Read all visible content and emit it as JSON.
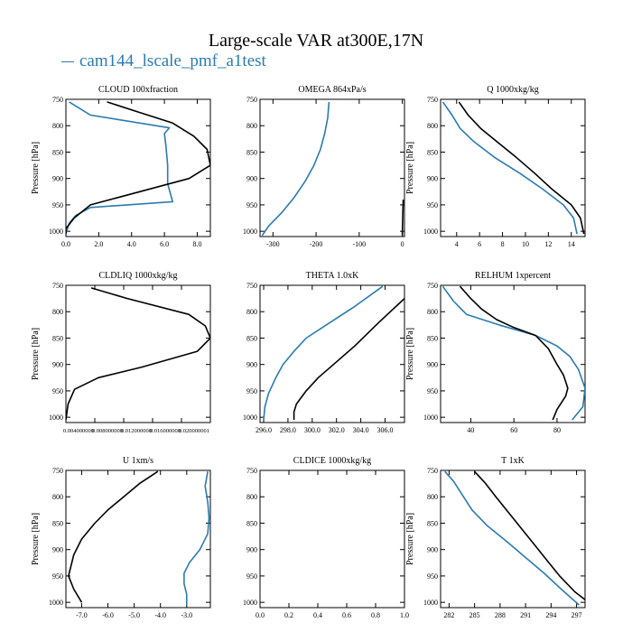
{
  "page": {
    "title": "Large-scale VAR at300E,17N",
    "legend_label": "cam144_lscale_pmf_a1test",
    "colors": {
      "case": "#2a7bb0",
      "control": "#000000"
    }
  },
  "chart_data": [
    {
      "type": "line",
      "title": "CLOUD  100xfraction",
      "ylabel": "Pressure [hPa]",
      "xlim": [
        0,
        8.8
      ],
      "ylim": [
        750,
        1010
      ],
      "xticks": [
        0.0,
        2.0,
        4.0,
        6.0,
        8.0
      ],
      "xtick_labels": [
        "0.0",
        "2.0",
        "4.0",
        "6.0",
        "8.0"
      ],
      "yticks": [
        750,
        800,
        850,
        900,
        950,
        1000
      ],
      "series": [
        {
          "color": "#2a7bb0",
          "points": [
            [
              0.2,
              755
            ],
            [
              1.5,
              780
            ],
            [
              6.3,
              804
            ],
            [
              6.0,
              815
            ],
            [
              6.1,
              840
            ],
            [
              6.2,
              875
            ],
            [
              6.2,
              910
            ],
            [
              6.5,
              944
            ],
            [
              1.5,
              955
            ],
            [
              0.6,
              970
            ],
            [
              0.2,
              985
            ],
            [
              0.0,
              1005
            ]
          ]
        },
        {
          "color": "#000000",
          "points": [
            [
              2.5,
              755
            ],
            [
              4.5,
              775
            ],
            [
              6.5,
              795
            ],
            [
              7.8,
              820
            ],
            [
              8.6,
              845
            ],
            [
              8.8,
              875
            ],
            [
              7.5,
              900
            ],
            [
              4.5,
              925
            ],
            [
              1.5,
              950
            ],
            [
              0.5,
              975
            ],
            [
              0.0,
              995
            ],
            [
              0.0,
              1005
            ]
          ]
        }
      ]
    },
    {
      "type": "line",
      "title": "OMEGA  864xPa/s",
      "ylabel": "",
      "xlim": [
        -330,
        5
      ],
      "ylim": [
        750,
        1010
      ],
      "xticks": [
        -300,
        -200,
        -100,
        0
      ],
      "xtick_labels": [
        "-300",
        "-200",
        "-100",
        "0"
      ],
      "yticks": [
        750,
        800,
        850,
        900,
        950,
        1000
      ],
      "series": [
        {
          "color": "#2a7bb0",
          "points": [
            [
              -170,
              755
            ],
            [
              -173,
              785
            ],
            [
              -180,
              815
            ],
            [
              -190,
              845
            ],
            [
              -205,
              875
            ],
            [
              -225,
              905
            ],
            [
              -250,
              935
            ],
            [
              -280,
              965
            ],
            [
              -310,
              990
            ],
            [
              -325,
              1008
            ]
          ]
        },
        {
          "color": "#000000",
          "points": [
            [
              2,
              940
            ],
            [
              1,
              970
            ],
            [
              0,
              1008
            ]
          ]
        }
      ]
    },
    {
      "type": "line",
      "title": "Q  1000xkg/kg",
      "ylabel": "Pressure [hPa]",
      "xlim": [
        2.6,
        15.2
      ],
      "ylim": [
        750,
        1010
      ],
      "xticks": [
        4,
        6,
        8,
        10,
        12,
        14
      ],
      "xtick_labels": [
        "4",
        "6",
        "8",
        "10",
        "12",
        "14"
      ],
      "yticks": [
        750,
        800,
        850,
        900,
        950,
        1000
      ],
      "series": [
        {
          "color": "#2a7bb0",
          "points": [
            [
              2.8,
              755
            ],
            [
              3.6,
              780
            ],
            [
              4.3,
              805
            ],
            [
              5.5,
              830
            ],
            [
              7.3,
              860
            ],
            [
              9.5,
              890
            ],
            [
              11.5,
              920
            ],
            [
              13.3,
              950
            ],
            [
              14.2,
              975
            ],
            [
              14.5,
              1005
            ]
          ]
        },
        {
          "color": "#000000",
          "points": [
            [
              4.2,
              755
            ],
            [
              5.0,
              780
            ],
            [
              6.1,
              805
            ],
            [
              7.5,
              830
            ],
            [
              9.2,
              860
            ],
            [
              10.8,
              890
            ],
            [
              12.3,
              920
            ],
            [
              14.0,
              950
            ],
            [
              14.8,
              975
            ],
            [
              15.1,
              1005
            ]
          ]
        }
      ]
    },
    {
      "type": "line",
      "title": "CLDLIQ  1000xkg/kg",
      "ylabel": "Pressure [hPa]",
      "xlim": [
        0,
        0.02
      ],
      "ylim": [
        750,
        1010
      ],
      "xticks": [
        0.004,
        0.008,
        0.012,
        0.016,
        0.02
      ],
      "xtick_labels": [
        "0.004000000",
        "0.008000000",
        "0.012000000",
        "0.016000000",
        "0.020000001"
      ],
      "yticks": [
        750,
        800,
        850,
        900,
        950,
        1000
      ],
      "series": [
        {
          "color": "#000000",
          "points": [
            [
              0.0035,
              755
            ],
            [
              0.0085,
              775
            ],
            [
              0.017,
              805
            ],
            [
              0.0193,
              827
            ],
            [
              0.02,
              850
            ],
            [
              0.0182,
              875
            ],
            [
              0.0105,
              905
            ],
            [
              0.0045,
              925
            ],
            [
              0.0012,
              947
            ],
            [
              0.0003,
              975
            ],
            [
              0.0,
              1005
            ]
          ]
        }
      ]
    },
    {
      "type": "line",
      "title": "THETA  1.0xK",
      "ylabel": "",
      "xlim": [
        295.7,
        307.6
      ],
      "ylim": [
        750,
        1010
      ],
      "xticks": [
        296.0,
        298.0,
        300.0,
        302.0,
        304.0,
        306.0
      ],
      "xtick_labels": [
        "296.0",
        "298.0",
        "300.0",
        "302.0",
        "304.0",
        "306.0"
      ],
      "yticks": [
        750,
        800,
        850,
        900,
        950,
        1000
      ],
      "series": [
        {
          "color": "#2a7bb0",
          "points": [
            [
              305.8,
              752
            ],
            [
              303.5,
              790
            ],
            [
              301.5,
              820
            ],
            [
              299.5,
              850
            ],
            [
              298.5,
              875
            ],
            [
              297.6,
              900
            ],
            [
              297.0,
              925
            ],
            [
              296.4,
              955
            ],
            [
              296.1,
              980
            ],
            [
              296.0,
              1005
            ]
          ]
        },
        {
          "color": "#000000",
          "points": [
            [
              307.6,
              775
            ],
            [
              305.5,
              820
            ],
            [
              303.5,
              865
            ],
            [
              302.0,
              895
            ],
            [
              300.5,
              925
            ],
            [
              299.5,
              950
            ],
            [
              298.7,
              975
            ],
            [
              298.5,
              990
            ],
            [
              298.5,
              1005
            ]
          ]
        }
      ]
    },
    {
      "type": "line",
      "title": "RELHUM  1xpercent",
      "ylabel": "Pressure [hPa]",
      "xlim": [
        26,
        93
      ],
      "ylim": [
        750,
        1010
      ],
      "xticks": [
        40,
        60,
        80
      ],
      "xtick_labels": [
        "40",
        "60",
        "80"
      ],
      "yticks": [
        750,
        800,
        850,
        900,
        950,
        1000
      ],
      "series": [
        {
          "color": "#2a7bb0",
          "points": [
            [
              27,
              752
            ],
            [
              32,
              780
            ],
            [
              38,
              805
            ],
            [
              53,
              825
            ],
            [
              70,
              845
            ],
            [
              80,
              865
            ],
            [
              86,
              885
            ],
            [
              90,
              910
            ],
            [
              93,
              945
            ],
            [
              92,
              980
            ],
            [
              87,
              1005
            ]
          ]
        },
        {
          "color": "#000000",
          "points": [
            [
              35,
              752
            ],
            [
              40,
              775
            ],
            [
              45,
              795
            ],
            [
              52,
              815
            ],
            [
              60,
              830
            ],
            [
              70,
              845
            ],
            [
              76,
              870
            ],
            [
              80,
              900
            ],
            [
              83,
              920
            ],
            [
              85,
              945
            ],
            [
              84,
              960
            ],
            [
              80,
              985
            ],
            [
              78,
              1005
            ]
          ]
        }
      ]
    },
    {
      "type": "line",
      "title": "U  1xm/s",
      "ylabel": "Pressure [hPa]",
      "xlim": [
        -7.6,
        -2.1
      ],
      "ylim": [
        750,
        1010
      ],
      "xticks": [
        -7.0,
        -6.0,
        -5.0,
        -4.0,
        -3.0
      ],
      "xtick_labels": [
        "-7.0",
        "-6.0",
        "-5.0",
        "-4.0",
        "-3.0"
      ],
      "yticks": [
        750,
        800,
        850,
        900,
        950,
        1000
      ],
      "series": [
        {
          "color": "#2a7bb0",
          "points": [
            [
              -2.2,
              752
            ],
            [
              -2.3,
              780
            ],
            [
              -2.2,
              810
            ],
            [
              -2.15,
              840
            ],
            [
              -2.2,
              870
            ],
            [
              -2.5,
              900
            ],
            [
              -2.9,
              925
            ],
            [
              -3.1,
              945
            ],
            [
              -3.1,
              965
            ],
            [
              -3.0,
              985
            ],
            [
              -3.0,
              1005
            ]
          ]
        },
        {
          "color": "#000000",
          "points": [
            [
              -4.1,
              752
            ],
            [
              -4.8,
              775
            ],
            [
              -5.4,
              800
            ],
            [
              -6.0,
              825
            ],
            [
              -6.5,
              850
            ],
            [
              -7.0,
              880
            ],
            [
              -7.3,
              910
            ],
            [
              -7.5,
              950
            ],
            [
              -7.3,
              975
            ],
            [
              -7.0,
              1000
            ]
          ]
        }
      ]
    },
    {
      "type": "line",
      "title": "CLDICE  1000xkg/kg",
      "ylabel": "",
      "xlim": [
        0,
        1.0
      ],
      "ylim": [
        750,
        1010
      ],
      "xticks": [
        0.0,
        0.2,
        0.4,
        0.6,
        0.8,
        1.0
      ],
      "xtick_labels": [
        "0.0",
        "0.2",
        "0.4",
        "0.6",
        "0.8",
        "1.0"
      ],
      "yticks": [
        750,
        800,
        850,
        900,
        950,
        1000
      ],
      "series": []
    },
    {
      "type": "line",
      "title": "T  1xK",
      "ylabel": "Pressure [hPa]",
      "xlim": [
        281,
        298
      ],
      "ylim": [
        750,
        1010
      ],
      "xticks": [
        282,
        285,
        288,
        291,
        294,
        297
      ],
      "xtick_labels": [
        "282",
        "285",
        "288",
        "291",
        "294",
        "297"
      ],
      "yticks": [
        750,
        800,
        850,
        900,
        950,
        1000
      ],
      "series": [
        {
          "color": "#2a7bb0",
          "points": [
            [
              281.5,
              752
            ],
            [
              282.5,
              770
            ],
            [
              283.5,
              795
            ],
            [
              284.7,
              825
            ],
            [
              286.5,
              855
            ],
            [
              288.8,
              885
            ],
            [
              291.0,
              915
            ],
            [
              293.2,
              945
            ],
            [
              295.2,
              975
            ],
            [
              297.3,
              1005
            ]
          ]
        },
        {
          "color": "#000000",
          "points": [
            [
              285.0,
              752
            ],
            [
              286.3,
              775
            ],
            [
              287.5,
              800
            ],
            [
              289.0,
              830
            ],
            [
              290.5,
              860
            ],
            [
              292.0,
              890
            ],
            [
              293.5,
              920
            ],
            [
              295.0,
              950
            ],
            [
              296.8,
              980
            ],
            [
              298.0,
              995
            ]
          ]
        }
      ]
    }
  ]
}
